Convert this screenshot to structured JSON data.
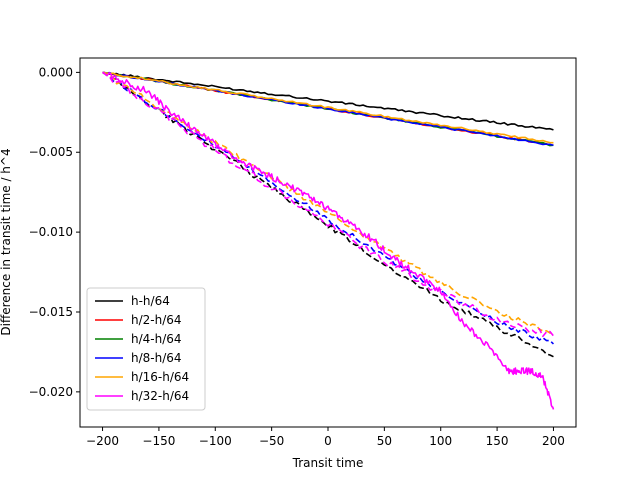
{
  "chart_data": {
    "type": "line",
    "title": "",
    "xlabel": "Transit time",
    "ylabel": "Difference in transit time / h^4",
    "xlim": [
      -220,
      220
    ],
    "ylim": [
      -0.0222,
      0.0009
    ],
    "xticks": [
      -200,
      -150,
      -100,
      -50,
      0,
      50,
      100,
      150,
      200
    ],
    "xtick_labels": [
      "−200",
      "−150",
      "−100",
      "−50",
      "0",
      "50",
      "100",
      "150",
      "200"
    ],
    "yticks": [
      0.0,
      -0.005,
      -0.01,
      -0.015,
      -0.02
    ],
    "ytick_labels": [
      "0.000",
      "−0.005",
      "−0.010",
      "−0.015",
      "−0.020"
    ],
    "grid": false,
    "legend_position": "lower-left",
    "series": [
      {
        "name": "h-h/64",
        "color": "#000000",
        "dash": "solid",
        "x": [
          -200,
          -150,
          -100,
          -50,
          0,
          50,
          100,
          150,
          200
        ],
        "y": [
          0.0,
          -0.00045,
          -0.0009,
          -0.00135,
          -0.0018,
          -0.00225,
          -0.0027,
          -0.00315,
          -0.0036
        ]
      },
      {
        "name": "h/2-h/64",
        "color": "#ff0000",
        "dash": "solid",
        "x": [
          -200,
          -150,
          -100,
          -50,
          0,
          50,
          100,
          150,
          200
        ],
        "y": [
          0.0,
          -0.00057,
          -0.00114,
          -0.00171,
          -0.00228,
          -0.00285,
          -0.00342,
          -0.00399,
          -0.00456
        ]
      },
      {
        "name": "h/4-h/64",
        "color": "#008000",
        "dash": "solid",
        "x": [
          -200,
          -150,
          -100,
          -50,
          0,
          50,
          100,
          150,
          200
        ],
        "y": [
          0.0,
          -0.00057,
          -0.00114,
          -0.00171,
          -0.00228,
          -0.00285,
          -0.00342,
          -0.00399,
          -0.00456
        ]
      },
      {
        "name": "h/8-h/64",
        "color": "#0000ff",
        "dash": "solid",
        "x": [
          -200,
          -150,
          -100,
          -50,
          0,
          50,
          100,
          150,
          200
        ],
        "y": [
          0.0,
          -0.00057,
          -0.00114,
          -0.00171,
          -0.00228,
          -0.00285,
          -0.00342,
          -0.00399,
          -0.00456
        ]
      },
      {
        "name": "h/16-h/64",
        "color": "#ffa500",
        "dash": "solid",
        "x": [
          -200,
          -150,
          -100,
          -50,
          0,
          50,
          100,
          150,
          200
        ],
        "y": [
          0.0,
          -0.00055,
          -0.0011,
          -0.00165,
          -0.0022,
          -0.00275,
          -0.0033,
          -0.00385,
          -0.0044
        ]
      },
      {
        "name": "",
        "color": "#000000",
        "dash": "dashed",
        "x": [
          -200,
          -150,
          -100,
          -50,
          0,
          50,
          100,
          150,
          200
        ],
        "y": [
          0.0,
          -0.0024,
          -0.0048,
          -0.0072,
          -0.0096,
          -0.012,
          -0.0142,
          -0.016,
          -0.0178
        ]
      },
      {
        "name": "",
        "color": "#0000ff",
        "dash": "dashed",
        "x": [
          -200,
          -150,
          -100,
          -50,
          0,
          50,
          100,
          150,
          200
        ],
        "y": [
          0.0,
          -0.0023,
          -0.0046,
          -0.0069,
          -0.0092,
          -0.0115,
          -0.0138,
          -0.0156,
          -0.017
        ]
      },
      {
        "name": "",
        "color": "#ffa500",
        "dash": "dashed",
        "x": [
          -200,
          -150,
          -100,
          -50,
          0,
          50,
          100,
          150,
          200
        ],
        "y": [
          0.0,
          -0.0022,
          -0.0044,
          -0.0066,
          -0.0088,
          -0.011,
          -0.0132,
          -0.015,
          -0.0164
        ]
      },
      {
        "name": "",
        "color": "#ff00ff",
        "dash": "dashed",
        "x": [
          -200,
          -150,
          -100,
          -50,
          0,
          50,
          100,
          150,
          200
        ],
        "y": [
          0.0,
          -0.0024,
          -0.0049,
          -0.0072,
          -0.0095,
          -0.0118,
          -0.0138,
          -0.0155,
          -0.0165
        ]
      },
      {
        "name": "h/32-h/64",
        "color": "#ff00ff",
        "dash": "solid",
        "x": [
          -200,
          -180,
          -160,
          -140,
          -120,
          -100,
          -80,
          -60,
          -40,
          -20,
          0,
          20,
          40,
          60,
          80,
          100,
          120,
          140,
          160,
          170,
          180,
          190,
          200
        ],
        "y": [
          0.0,
          -0.0006,
          -0.0012,
          -0.0025,
          -0.0035,
          -0.0045,
          -0.0055,
          -0.0062,
          -0.0069,
          -0.0077,
          -0.0085,
          -0.0095,
          -0.0105,
          -0.0117,
          -0.0127,
          -0.0137,
          -0.0157,
          -0.017,
          -0.0187,
          -0.0187,
          -0.0187,
          -0.019,
          -0.0211
        ]
      }
    ]
  }
}
